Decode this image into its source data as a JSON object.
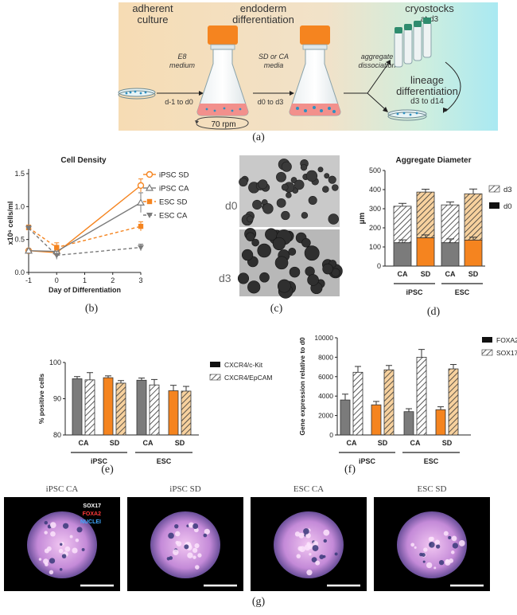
{
  "panel_labels": {
    "a": "(a)",
    "b": "(b)",
    "c": "(c)",
    "d": "(d)",
    "e": "(e)",
    "f": "(f)",
    "g": "(g)"
  },
  "schematic": {
    "stage_adherent": [
      "adherent",
      "culture"
    ],
    "stage_endoderm": [
      "endoderm",
      "differentiation"
    ],
    "stage_cryo": [
      "cryostocks",
      "at d3"
    ],
    "medium_e8": [
      "E8",
      "medium"
    ],
    "medium_sd_ca": [
      "SD or CA",
      "media"
    ],
    "dissociation": [
      "aggregate",
      "dissociation"
    ],
    "step1": "d-1 to d0",
    "step2": "d0 to d3",
    "lineage": [
      "lineage",
      "differentiation",
      "d3 to d14"
    ],
    "rpm": "70 rpm"
  },
  "micro_labels": {
    "d0": "d0",
    "d3": "d3"
  },
  "group_labels": {
    "ipsc": "iPSC",
    "esc": "ESC",
    "ca": "CA",
    "sd": "SD"
  },
  "immuno": {
    "titles": [
      "iPSC CA",
      "iPSC SD",
      "ESC CA",
      "ESC SD"
    ],
    "stain_legend": [
      "SOX17",
      "FOXA2",
      "NUCLEI"
    ]
  },
  "colors": {
    "orange": "#f5841f",
    "gray": "#7b7b7b",
    "black": "#111111",
    "orange_light": "#f7d19e"
  },
  "chart_data": [
    {
      "id": "b",
      "type": "line",
      "title": "Cell Density",
      "xlabel": "Day of Differentiation",
      "ylabel": "x10⁶ cells/ml",
      "x": [
        -1,
        0,
        3
      ],
      "xticks": [
        "-1",
        "0",
        "1",
        "2",
        "3"
      ],
      "yticks": [
        "0.0",
        "0.5",
        "1.0",
        "1.5"
      ],
      "ylim": [
        0,
        1.5
      ],
      "xlim": [
        -1,
        3
      ],
      "legend_position": "right",
      "series": [
        {
          "name": "iPSC SD",
          "values": [
            0.33,
            0.3,
            1.32
          ],
          "err": [
            0.03,
            0.05,
            0.1
          ]
        },
        {
          "name": "iPSC CA",
          "values": [
            0.33,
            0.32,
            1.06
          ],
          "err": [
            0.03,
            0.05,
            0.15
          ]
        },
        {
          "name": "ESC SD",
          "values": [
            0.68,
            0.38,
            0.7
          ],
          "err": [
            0.04,
            0.07,
            0.07
          ]
        },
        {
          "name": "ESC CA",
          "values": [
            0.67,
            0.26,
            0.38
          ],
          "err": [
            0.04,
            0.06,
            0.05
          ]
        }
      ]
    },
    {
      "id": "d",
      "type": "bar",
      "title": "Aggregate Diameter",
      "ylabel": "µm",
      "categories": [
        "CA",
        "SD",
        "CA",
        "SD"
      ],
      "groups": [
        "iPSC",
        "ESC"
      ],
      "ylim": [
        0,
        500
      ],
      "yticks": [
        "0",
        "100",
        "200",
        "300",
        "400",
        "500"
      ],
      "legend_position": "top-right",
      "series": [
        {
          "name": "d0",
          "values": [
            122,
            148,
            122,
            136
          ],
          "err": [
            15,
            15,
            20,
            15
          ]
        },
        {
          "name": "d3",
          "values": [
            313,
            387,
            320,
            378
          ],
          "err": [
            15,
            15,
            15,
            25
          ]
        }
      ]
    },
    {
      "id": "e",
      "type": "bar",
      "ylabel": "% positive cells",
      "categories": [
        "CA",
        "SD",
        "CA",
        "SD"
      ],
      "groups": [
        "iPSC",
        "ESC"
      ],
      "ylim": [
        80,
        100
      ],
      "yticks": [
        "80",
        "90",
        "100"
      ],
      "legend_position": "top-right",
      "series": [
        {
          "name": "CXCR4/c-Kit",
          "values": [
            95.5,
            95.8,
            95.1,
            92.2
          ],
          "err": [
            0.6,
            0.5,
            0.6,
            1.5
          ]
        },
        {
          "name": "CXCR4/EpCAM",
          "values": [
            95.2,
            94.3,
            93.8,
            92.1
          ],
          "err": [
            2.0,
            0.7,
            1.5,
            1.3
          ]
        }
      ]
    },
    {
      "id": "f",
      "type": "bar",
      "ylabel": "Gene expression relative to d0",
      "categories": [
        "CA",
        "SD",
        "CA",
        "SD"
      ],
      "groups": [
        "iPSC",
        "ESC"
      ],
      "ylim": [
        0,
        10000
      ],
      "yticks": [
        "0",
        "2000",
        "4000",
        "6000",
        "8000",
        "10000"
      ],
      "legend_position": "top-right",
      "series": [
        {
          "name": "FOXA2",
          "values": [
            3600,
            3100,
            2400,
            2600
          ],
          "err": [
            600,
            350,
            300,
            300
          ]
        },
        {
          "name": "SOX17",
          "values": [
            6450,
            6700,
            8000,
            6800
          ],
          "err": [
            600,
            450,
            800,
            450
          ]
        }
      ]
    }
  ]
}
